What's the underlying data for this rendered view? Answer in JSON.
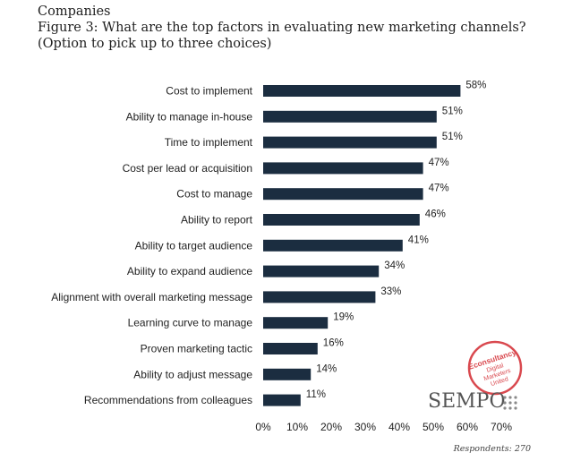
{
  "header": {
    "line1": "Companies",
    "line2": "Figure 3: What are the top factors in evaluating new marketing channels?",
    "line3": "(Option to pick up to three choices)"
  },
  "chart_data": {
    "type": "bar",
    "orientation": "horizontal",
    "categories": [
      "Cost to implement",
      "Ability to manage in-house",
      "Time to implement",
      "Cost per lead or acquisition",
      "Cost to manage",
      "Ability to report",
      "Ability to target audience",
      "Ability to expand audience",
      "Alignment with overall marketing message",
      "Learning curve to manage",
      "Proven marketing tactic",
      "Ability to adjust message",
      "Recommendations from colleagues"
    ],
    "values": [
      58,
      51,
      51,
      47,
      47,
      46,
      41,
      34,
      33,
      19,
      16,
      14,
      11
    ],
    "value_labels": [
      "58%",
      "51%",
      "51%",
      "47%",
      "47%",
      "46%",
      "41%",
      "34%",
      "33%",
      "19%",
      "16%",
      "14%",
      "11%"
    ],
    "xlim": [
      0,
      70
    ],
    "xticks": [
      "0%",
      "10%",
      "20%",
      "30%",
      "40%",
      "50%",
      "60%",
      "70%"
    ],
    "xlabel": "",
    "ylabel": "",
    "bar_color": "#1b2d40"
  },
  "footer": {
    "respondents": "Respondents: 270",
    "logo_text": "SEMPO",
    "badge_text": [
      "Econsultancy",
      "Digital",
      "Marketers",
      "United"
    ],
    "badge_color": "#d9494f"
  }
}
